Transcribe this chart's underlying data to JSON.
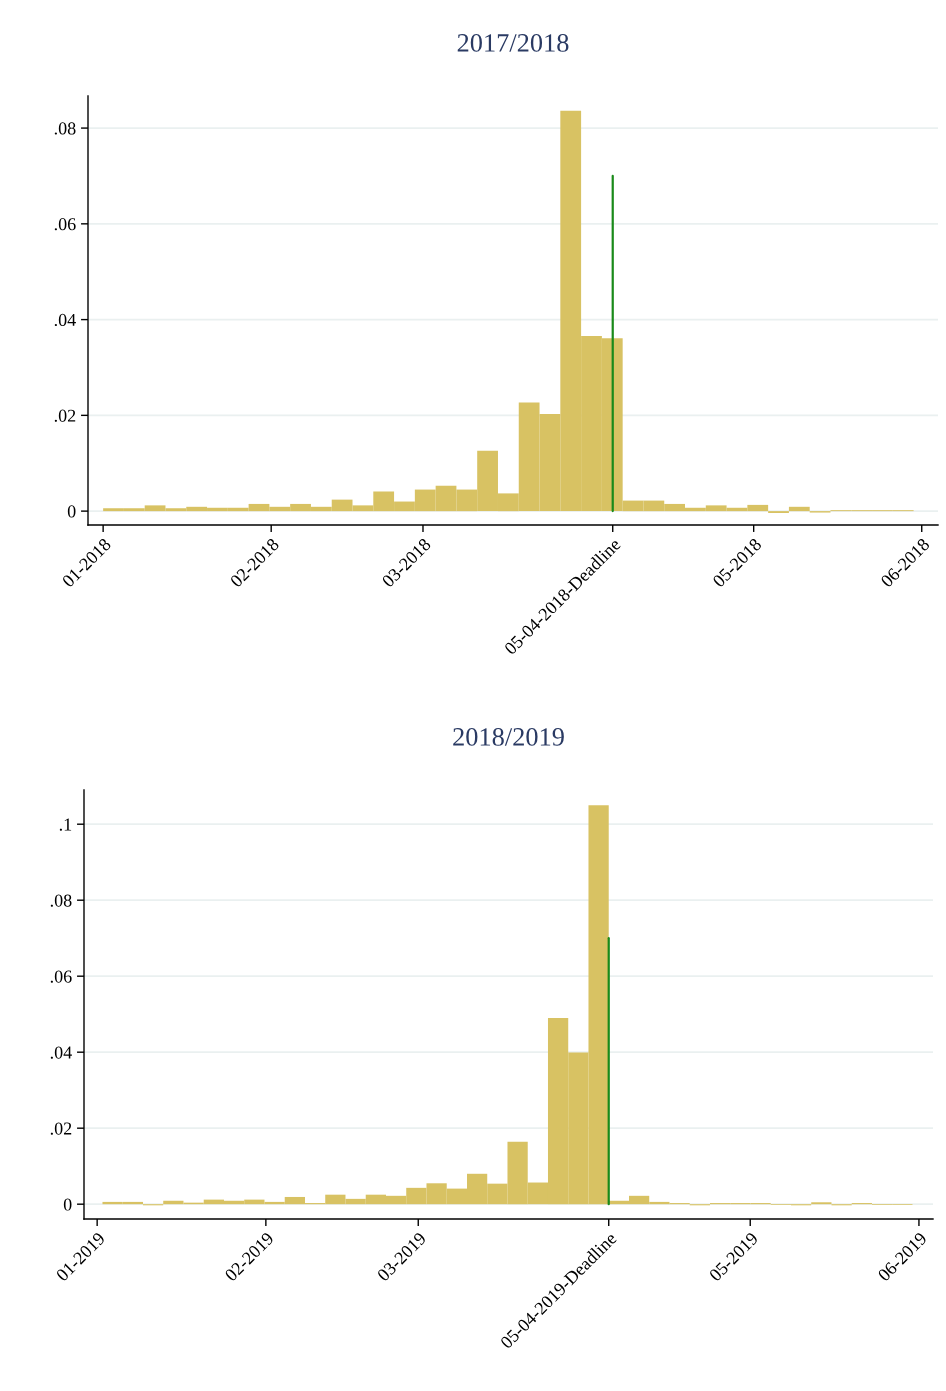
{
  "chart_data": [
    {
      "type": "histogram",
      "title": "2017/2018",
      "color": "#d8c263",
      "grid": "y",
      "bins": [
        "2018-01-01T00:00",
        "2018-01-04T20:00",
        "2018-01-08T16:00",
        "2018-01-12T12:00",
        "2018-01-16T08:00",
        "2018-01-20T04:00",
        "2018-01-24T00:00",
        "2018-01-27T20:00",
        "2018-01-31T16:00",
        "2018-02-04T12:00",
        "2018-02-08T08:00",
        "2018-02-12T04:00",
        "2018-02-16T00:00",
        "2018-02-19T20:00",
        "2018-02-23T16:00",
        "2018-02-27T12:00",
        "2018-03-03T08:00",
        "2018-03-07T04:00",
        "2018-03-11T00:00",
        "2018-03-14T20:00",
        "2018-03-18T16:00",
        "2018-03-22T12:00",
        "2018-03-26T08:00",
        "2018-03-30T04:00",
        "2018-04-03T00:00",
        "2018-04-06T20:00",
        "2018-04-10T16:00",
        "2018-04-14T12:00",
        "2018-04-18T08:00",
        "2018-04-22T04:00",
        "2018-04-26T00:00",
        "2018-04-29T20:00",
        "2018-05-03T16:00",
        "2018-05-07T12:00",
        "2018-05-11T08:00",
        "2018-05-15T04:00",
        "2018-05-19T00:00",
        "2018-05-22T20:00",
        "2018-05-26T16:00",
        "2018-05-30T12:00"
      ],
      "values": [
        0.0006,
        0.0006,
        0.0012,
        0.0006,
        0.0009,
        0.0007,
        0.0007,
        0.0015,
        0.0009,
        0.0015,
        0.0009,
        0.0024,
        0.0012,
        0.0041,
        0.002,
        0.0045,
        0.0053,
        0.0045,
        0.0126,
        0.0037,
        0.0227,
        0.0203,
        0.0836,
        0.0366,
        0.0361,
        0.0022,
        0.0022,
        0.0015,
        0.0007,
        0.0012,
        0.0007,
        0.0013,
        -0.0004,
        0.0009,
        -0.0003,
        0.0002,
        0.0002,
        0.0002,
        0.0002
      ],
      "series": [
        {
          "type": "line",
          "color": "#1a8a1a",
          "x": [
            "2018-04-05",
            "2018-04-05"
          ],
          "values": [
            0,
            0.07
          ]
        }
      ],
      "xlim": [
        "2017-12-29T05:00",
        "2018-06-04T00:00"
      ],
      "xticks": [
        {
          "value": "2018-01-01",
          "label": "01-2018"
        },
        {
          "value": "2018-02-01",
          "label": "02-2018"
        },
        {
          "value": "2018-03-01",
          "label": "03-2018"
        },
        {
          "value": "2018-04-05",
          "label": "05-04-2018-Deadline"
        },
        {
          "value": "2018-05-01",
          "label": "05-2018"
        },
        {
          "value": "2018-06-01",
          "label": "06-2018"
        }
      ],
      "ylim": [
        -0.0029,
        0.0867
      ],
      "yticks": [
        0,
        {
          "value": 0.02,
          "label": ".02"
        },
        {
          "value": 0.04,
          "label": ".04"
        },
        {
          "value": 0.06,
          "label": ".06"
        },
        {
          "value": 0.08,
          "label": ".08"
        }
      ]
    },
    {
      "type": "histogram",
      "title": "2018/2019",
      "color": "#d8c263",
      "grid": "y",
      "bins": [
        "2019-01-01T23:30",
        "2019-01-05T16:48",
        "2019-01-09T10:06",
        "2019-01-13T03:24",
        "2019-01-16T20:42",
        "2019-01-20T14:00",
        "2019-01-24T07:18",
        "2019-01-28T00:36",
        "2019-01-31T17:54",
        "2019-02-04T11:12",
        "2019-02-08T04:30",
        "2019-02-11T21:48",
        "2019-02-15T15:06",
        "2019-02-19T08:24",
        "2019-02-23T01:42",
        "2019-02-26T19:00",
        "2019-03-02T12:18",
        "2019-03-06T05:36",
        "2019-03-09T22:54",
        "2019-03-13T16:12",
        "2019-03-17T09:30",
        "2019-03-21T02:48",
        "2019-03-24T20:06",
        "2019-03-28T13:24",
        "2019-04-01T06:42",
        "2019-04-05T00:00",
        "2019-04-08T17:18",
        "2019-04-12T10:36",
        "2019-04-16T03:54",
        "2019-04-19T21:12",
        "2019-04-23T14:30",
        "2019-04-27T07:48",
        "2019-05-01T01:06",
        "2019-05-04T18:24",
        "2019-05-08T11:42",
        "2019-05-12T05:00",
        "2019-05-15T22:18",
        "2019-05-19T15:36",
        "2019-05-23T08:54",
        "2019-05-27T02:12",
        "2019-05-30T19:30"
      ],
      "values": [
        0.0006,
        0.0006,
        -0.0003,
        0.0009,
        0.0004,
        0.0012,
        0.0009,
        0.0012,
        0.0006,
        0.0019,
        0.0003,
        0.0025,
        0.0014,
        0.0025,
        0.0022,
        0.0043,
        0.0055,
        0.0041,
        0.008,
        0.0054,
        0.0164,
        0.0057,
        0.049,
        0.0399,
        0.105,
        0.0009,
        0.0022,
        0.0006,
        0.0003,
        -0.0003,
        0.0003,
        0.0003,
        0.0003,
        -0.0002,
        -0.0003,
        0.0005,
        -0.0003,
        0.0003,
        -0.0002,
        -0.0002
      ],
      "series": [
        {
          "type": "line",
          "color": "#1a8a1a",
          "x": [
            "2019-04-05",
            "2019-04-05"
          ],
          "values": [
            0,
            0.07
          ]
        }
      ],
      "xlim": [
        "2018-12-29T14:00",
        "2019-06-03T14:00"
      ],
      "xticks": [
        {
          "value": "2019-01-01",
          "label": "01-2019"
        },
        {
          "value": "2019-02-01",
          "label": "02-2019"
        },
        {
          "value": "2019-03-01",
          "label": "03-2019"
        },
        {
          "value": "2019-04-05",
          "label": "05-04-2019-Deadline"
        },
        {
          "value": "2019-05-01",
          "label": "05-2019"
        },
        {
          "value": "2019-06-01",
          "label": "06-2019"
        }
      ],
      "ylim": [
        -0.0039,
        0.109
      ],
      "yticks": [
        0,
        {
          "value": 0.02,
          "label": ".02"
        },
        {
          "value": 0.04,
          "label": ".04"
        },
        {
          "value": 0.06,
          "label": ".06"
        },
        {
          "value": 0.08,
          "label": ".08"
        },
        {
          "value": 0.1,
          "label": ".1"
        }
      ]
    }
  ]
}
